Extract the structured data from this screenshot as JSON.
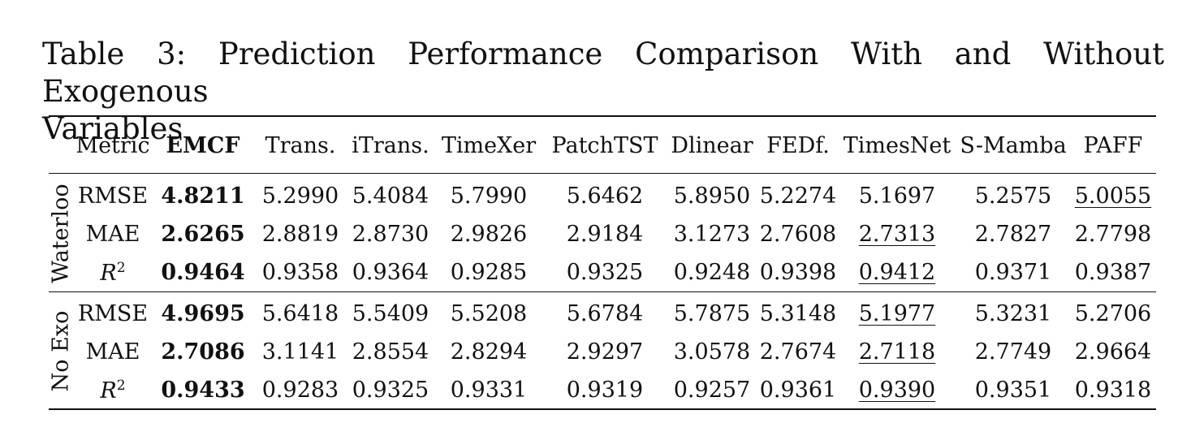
{
  "caption": {
    "line1": "Table 3: Prediction Performance Comparison With and Without Exogenous",
    "line2": "Variables"
  },
  "header": [
    "Metric",
    "EMCF",
    "Trans.",
    "iTrans.",
    "TimeXer",
    "PatchTST",
    "Dlinear",
    "FEDf.",
    "TimesNet",
    "S-Mamba",
    "PAFF"
  ],
  "groups": [
    {
      "label": "Waterloo",
      "rows": [
        {
          "metric": "RMSE",
          "values": [
            "4.8211",
            "5.2990",
            "5.4084",
            "5.7990",
            "5.6462",
            "5.8950",
            "5.2274",
            "5.1697",
            "5.2575",
            "5.0055"
          ]
        },
        {
          "metric": "MAE",
          "values": [
            "2.6265",
            "2.8819",
            "2.8730",
            "2.9826",
            "2.9184",
            "3.1273",
            "2.7608",
            "2.7313",
            "2.7827",
            "2.7798"
          ]
        },
        {
          "metric": "R",
          "metric_sup": "2",
          "values": [
            "0.9464",
            "0.9358",
            "0.9364",
            "0.9285",
            "0.9325",
            "0.9248",
            "0.9398",
            "0.9412",
            "0.9371",
            "0.9387"
          ]
        }
      ]
    },
    {
      "label": "No Exo",
      "rows": [
        {
          "metric": "RMSE",
          "values": [
            "4.9695",
            "5.6418",
            "5.5409",
            "5.5208",
            "5.6784",
            "5.7875",
            "5.3148",
            "5.1977",
            "5.3231",
            "5.2706"
          ]
        },
        {
          "metric": "MAE",
          "values": [
            "2.7086",
            "3.1141",
            "2.8554",
            "2.8294",
            "2.9297",
            "3.0578",
            "2.7674",
            "2.7118",
            "2.7749",
            "2.9664"
          ]
        },
        {
          "metric": "R",
          "metric_sup": "2",
          "values": [
            "0.9433",
            "0.9283",
            "0.9325",
            "0.9331",
            "0.9319",
            "0.9257",
            "0.9361",
            "0.9390",
            "0.9351",
            "0.9318"
          ]
        }
      ]
    }
  ],
  "emphasis": {
    "bold_column": 0,
    "underlined": [
      [
        0,
        0,
        9
      ],
      [
        0,
        1,
        7
      ],
      [
        0,
        2,
        7
      ],
      [
        1,
        0,
        7
      ],
      [
        1,
        1,
        7
      ],
      [
        1,
        2,
        7
      ]
    ]
  }
}
